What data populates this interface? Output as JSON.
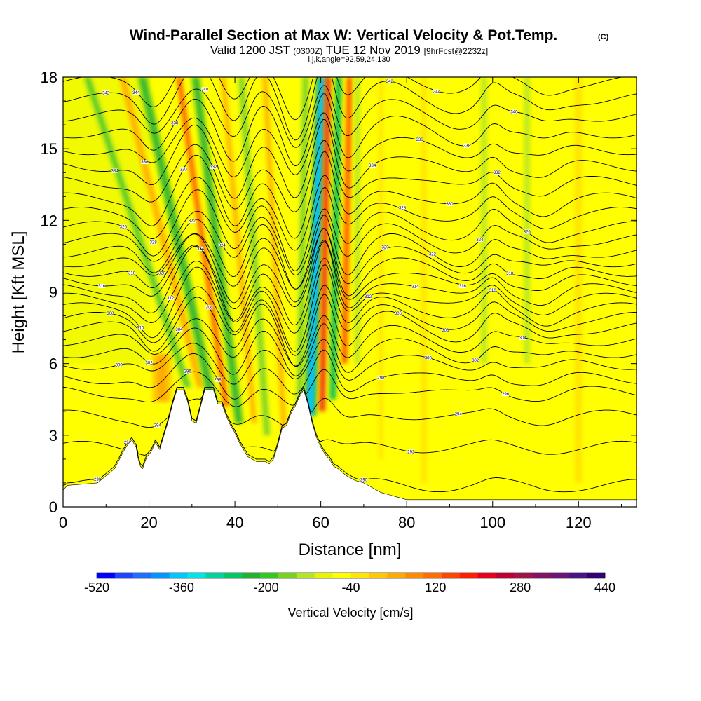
{
  "chart_data": {
    "type": "heatmap",
    "title": "Wind-Parallel Section at Max W: Vertical Velocity & Pot.Temp.",
    "title_mark": "(C)",
    "subtitle": {
      "part1": "Valid 1200 JST",
      "part2": "(0300Z)",
      "part3": "TUE 12 Nov 2019",
      "part4": "[9hrFcst@2232z]"
    },
    "subtitle2": "i,j,k,angle=92,59,24,130",
    "xlabel": "Distance [nm]",
    "ylabel": "Height [Kft MSL]",
    "xlim": [
      0,
      133.5
    ],
    "ylim": [
      0,
      18
    ],
    "x_ticks": [
      "0",
      "20",
      "40",
      "60",
      "80",
      "100",
      "120"
    ],
    "y_ticks": [
      "0",
      "3",
      "6",
      "9",
      "12",
      "15",
      "18"
    ],
    "colorbar": {
      "label": "Vertical Velocity [cm/s]",
      "ticks": [
        "-520",
        "-360",
        "-200",
        "-40",
        "120",
        "280",
        "440"
      ],
      "range": [
        -520,
        440
      ],
      "step": 40,
      "colors": [
        "#0000ff",
        "#1e46ff",
        "#1e6eff",
        "#0096ff",
        "#00c8ff",
        "#00e6e6",
        "#00d2a0",
        "#00c864",
        "#1eb432",
        "#32c81e",
        "#78d21e",
        "#b4e628",
        "#e6f500",
        "#ffff00",
        "#ffe600",
        "#ffc800",
        "#ffaa00",
        "#ff8c00",
        "#ff6e00",
        "#ff4600",
        "#ff1e00",
        "#e6001e",
        "#be0032",
        "#a0144b",
        "#821464",
        "#6e1478",
        "#4b1482",
        "#320078"
      ]
    },
    "terrain": {
      "description_units": "Kft MSL",
      "profile": [
        [
          0,
          0.7
        ],
        [
          1,
          0.9
        ],
        [
          8,
          1
        ],
        [
          10,
          1.3
        ],
        [
          12,
          1.6
        ],
        [
          14,
          2.3
        ],
        [
          15,
          2.6
        ],
        [
          16,
          2.8
        ],
        [
          17,
          2.5
        ],
        [
          17.5,
          2
        ],
        [
          18,
          1.7
        ],
        [
          18.5,
          1.6
        ],
        [
          19.5,
          2.1
        ],
        [
          20.5,
          2.3
        ],
        [
          21.5,
          2.7
        ],
        [
          22.5,
          2.4
        ],
        [
          23.5,
          3
        ],
        [
          24.5,
          3.6
        ],
        [
          25.5,
          4.3
        ],
        [
          26.5,
          4.9
        ],
        [
          28,
          4.9
        ],
        [
          29,
          4.4
        ],
        [
          30,
          3.6
        ],
        [
          31,
          3.5
        ],
        [
          32,
          4.2
        ],
        [
          33,
          4.9
        ],
        [
          35,
          4.9
        ],
        [
          36,
          4.3
        ],
        [
          37,
          4.3
        ],
        [
          38,
          3.8
        ],
        [
          39,
          3.4
        ],
        [
          40,
          3.1
        ],
        [
          41,
          2.7
        ],
        [
          42,
          2.4
        ],
        [
          43,
          2.1
        ],
        [
          44,
          2
        ],
        [
          45,
          1.9
        ],
        [
          47,
          1.9
        ],
        [
          48,
          1.8
        ],
        [
          49,
          2
        ],
        [
          50,
          2.6
        ],
        [
          51,
          3.3
        ],
        [
          52,
          3.4
        ],
        [
          53,
          3.9
        ],
        [
          54,
          4.2
        ],
        [
          55,
          4.6
        ],
        [
          56,
          4.9
        ],
        [
          57,
          4.3
        ],
        [
          57.5,
          3.9
        ],
        [
          58,
          3.5
        ],
        [
          59,
          2.9
        ],
        [
          60,
          2.5
        ],
        [
          61,
          2.2
        ],
        [
          62,
          2
        ],
        [
          63,
          1.7
        ],
        [
          64,
          1.6
        ],
        [
          66,
          1.3
        ],
        [
          68,
          1.1
        ],
        [
          70,
          1
        ],
        [
          72,
          0.8
        ],
        [
          74,
          0.6
        ],
        [
          76,
          0.5
        ],
        [
          78,
          0.4
        ],
        [
          80,
          0.3
        ],
        [
          90,
          0.3
        ],
        [
          100,
          0.3
        ],
        [
          110,
          0.3
        ],
        [
          120,
          0.3
        ],
        [
          133.5,
          0.3
        ]
      ]
    },
    "w_features": {
      "units": "cm/s",
      "items": [
        {
          "x_base": 23,
          "y0": 4.4,
          "y1": 6.4,
          "lean": 0,
          "half_width": 2.2,
          "value": 150
        },
        {
          "x_base": 29,
          "y0": 5,
          "y1": 18,
          "lean": -1.8,
          "half_width": 1.1,
          "value": -130
        },
        {
          "x_base": 32,
          "y0": 5,
          "y1": 18,
          "lean": -1.4,
          "half_width": 0.9,
          "value": 150
        },
        {
          "x_base": 35,
          "y0": 4.2,
          "y1": 18,
          "lean": -1.2,
          "half_width": 1.2,
          "value": -200
        },
        {
          "x_base": 38,
          "y0": 4.2,
          "y1": 18,
          "lean": -0.8,
          "half_width": 0.8,
          "value": 260
        },
        {
          "x_base": 41,
          "y0": 3.5,
          "y1": 18,
          "lean": -0.7,
          "half_width": 1.1,
          "value": -190
        },
        {
          "x_base": 44.5,
          "y0": 3.5,
          "y1": 18,
          "lean": -0.5,
          "half_width": 0.9,
          "value": 140
        },
        {
          "x_base": 47.5,
          "y0": 3,
          "y1": 18,
          "lean": -0.4,
          "half_width": 0.9,
          "value": -110
        },
        {
          "x_base": 51.5,
          "y0": 3,
          "y1": 18,
          "lean": -0.3,
          "half_width": 0.9,
          "value": 130
        },
        {
          "x_base": 55,
          "y0": 3.5,
          "y1": 18,
          "lean": 0.1,
          "half_width": 0.9,
          "value": -120
        },
        {
          "x_base": 57.5,
          "y0": 3.8,
          "y1": 18,
          "lean": 0.2,
          "half_width": 1.4,
          "value": -330
        },
        {
          "x_base": 60.3,
          "y0": 4,
          "y1": 18,
          "lean": 0.1,
          "half_width": 0.9,
          "value": 340
        },
        {
          "x_base": 62.8,
          "y0": 4.5,
          "y1": 18,
          "lean": 0.1,
          "half_width": 0.8,
          "value": -240
        },
        {
          "x_base": 65.5,
          "y0": 6,
          "y1": 18,
          "lean": 0.1,
          "half_width": 0.9,
          "value": 260
        },
        {
          "x_base": 68.5,
          "y0": 6,
          "y1": 18,
          "lean": 0,
          "half_width": 0.9,
          "value": -60
        },
        {
          "x_base": 74,
          "y0": 2,
          "y1": 18,
          "lean": 0,
          "half_width": 1.2,
          "value": 60
        },
        {
          "x_base": 84,
          "y0": 1,
          "y1": 18,
          "lean": 0,
          "half_width": 1.5,
          "value": 50
        },
        {
          "x_base": 98,
          "y0": 6,
          "y1": 18,
          "lean": 0,
          "half_width": 1,
          "value": -70
        },
        {
          "x_base": 108,
          "y0": 6,
          "y1": 18,
          "lean": 0,
          "half_width": 1,
          "value": -60
        },
        {
          "x_base": 120,
          "y0": 1,
          "y1": 18,
          "lean": 0,
          "half_width": 2,
          "value": 40
        }
      ]
    },
    "theta_contours": {
      "units": "K",
      "lowest": 290,
      "step": 2,
      "base_heights": [
        0.9,
        2.5,
        3.8,
        4.8,
        5.4,
        6.0,
        6.5,
        7.0,
        7.5,
        7.9,
        8.3,
        8.7,
        9.1,
        9.5,
        9.9,
        10.3,
        10.7,
        11.2,
        11.7,
        12.3,
        12.9,
        13.6,
        14.3,
        15.0,
        15.7,
        16.4,
        17.1,
        17.8
      ]
    }
  }
}
